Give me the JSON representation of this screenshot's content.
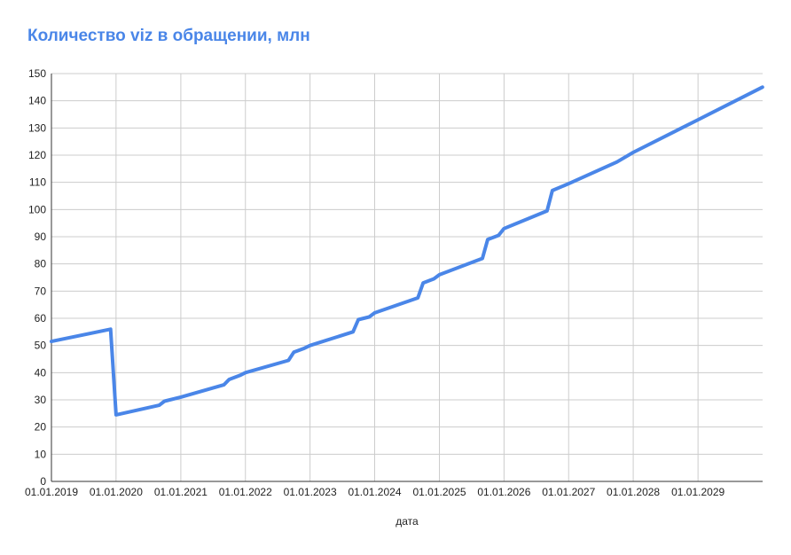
{
  "chart_data": {
    "type": "line",
    "title": "Количество viz в обращении, млн",
    "xlabel": "дата",
    "ylabel": "",
    "ylim": [
      0,
      150
    ],
    "y_ticks": [
      0,
      10,
      20,
      30,
      40,
      50,
      60,
      70,
      80,
      90,
      100,
      110,
      120,
      130,
      140,
      150
    ],
    "x_ticks": [
      "01.01.2019",
      "01.01.2020",
      "01.01.2021",
      "01.01.2022",
      "01.01.2023",
      "01.01.2024",
      "01.01.2025",
      "01.01.2026",
      "01.01.2027",
      "01.01.2028",
      "01.01.2029"
    ],
    "grid": true,
    "legend": "none",
    "colors": {
      "line": "#4a86e8",
      "title": "#4a86e8",
      "grid": "#cccccc",
      "axis": "#333333"
    },
    "series": [
      {
        "x": [
          "01.01.2019",
          "01.12.2019",
          "01.01.2020",
          "01.09.2020",
          "01.10.2020",
          "01.01.2021",
          "01.09.2021",
          "01.10.2021",
          "01.12.2021",
          "01.01.2022",
          "01.09.2022",
          "01.10.2022",
          "01.12.2022",
          "01.01.2023",
          "01.09.2023",
          "01.10.2023",
          "01.12.2023",
          "01.01.2024",
          "01.09.2024",
          "01.10.2024",
          "01.12.2024",
          "01.01.2025",
          "01.09.2025",
          "01.10.2025",
          "01.12.2025",
          "01.01.2026",
          "01.09.2026",
          "01.10.2026",
          "01.01.2027",
          "01.10.2027",
          "01.01.2028",
          "01.10.2028",
          "01.01.2029",
          "31.12.2029"
        ],
        "values": [
          51.5,
          56,
          24.5,
          28,
          29.5,
          31,
          35.5,
          37.5,
          39,
          40,
          44.5,
          47.5,
          49,
          50,
          55,
          59.5,
          60.5,
          62,
          67.5,
          73,
          74.5,
          76,
          82,
          89,
          90.5,
          93,
          99.5,
          107,
          109.5,
          117.5,
          121,
          130,
          133,
          145
        ]
      }
    ]
  }
}
